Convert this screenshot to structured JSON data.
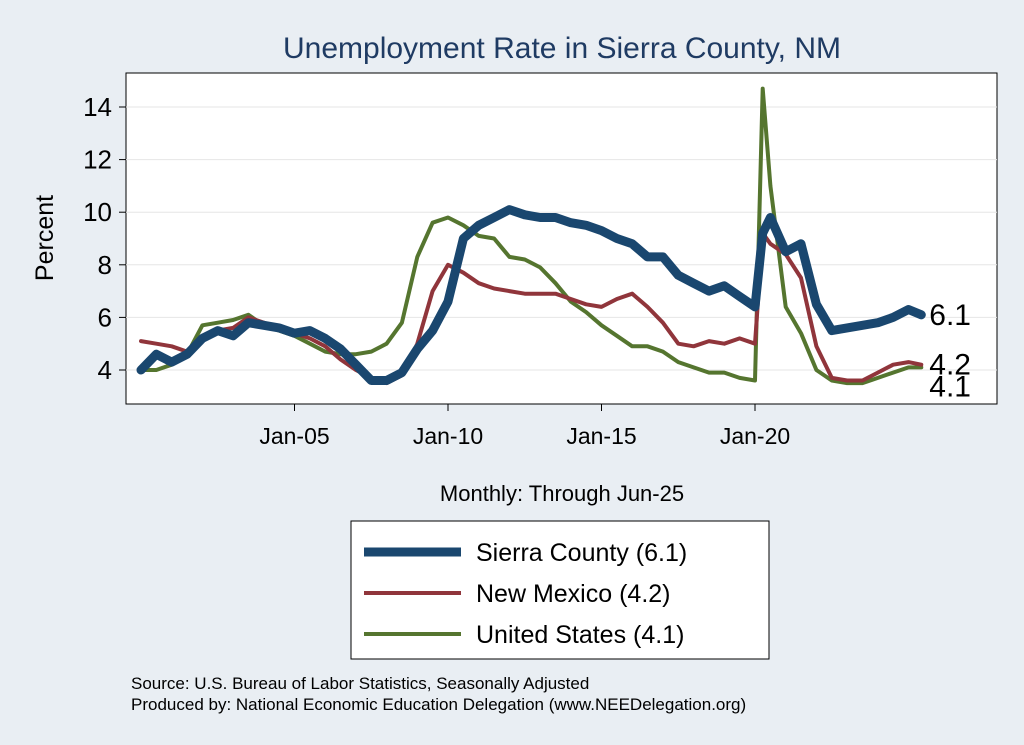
{
  "chart_data": {
    "type": "line",
    "title": "Unemployment Rate in Sierra  County, NM",
    "ylabel": "Percent",
    "xlabel": "Monthly: Through Jun-25",
    "x_range": [
      "Jan-00",
      "Jun-25"
    ],
    "ylim": [
      3,
      15
    ],
    "y_ticks": [
      4,
      6,
      8,
      10,
      12,
      14
    ],
    "x_ticks": [
      "Jan-05",
      "Jan-10",
      "Jan-15",
      "Jan-20"
    ],
    "grid": true,
    "legend_position": "bottom",
    "x": [
      "Jan-00",
      "Jul-00",
      "Jan-01",
      "Jul-01",
      "Jan-02",
      "Jul-02",
      "Jan-03",
      "Jul-03",
      "Jan-04",
      "Jul-04",
      "Jan-05",
      "Jul-05",
      "Jan-06",
      "Jul-06",
      "Jan-07",
      "Jul-07",
      "Jan-08",
      "Jul-08",
      "Jan-09",
      "Jul-09",
      "Jan-10",
      "Jul-10",
      "Jan-11",
      "Jul-11",
      "Jan-12",
      "Jul-12",
      "Jan-13",
      "Jul-13",
      "Jan-14",
      "Jul-14",
      "Jan-15",
      "Jul-15",
      "Jan-16",
      "Jul-16",
      "Jan-17",
      "Jul-17",
      "Jan-18",
      "Jul-18",
      "Jan-19",
      "Jul-19",
      "Jan-20",
      "Apr-20",
      "Jul-20",
      "Jan-21",
      "Jul-21",
      "Jan-22",
      "Jul-22",
      "Jan-23",
      "Jul-23",
      "Jan-24",
      "Jul-24",
      "Jan-25",
      "Jun-25"
    ],
    "series": [
      {
        "name": "Sierra  County (6.1)",
        "color": "#1a476f",
        "values": [
          4.0,
          4.6,
          4.3,
          4.6,
          5.2,
          5.5,
          5.3,
          5.8,
          5.7,
          5.6,
          5.4,
          5.5,
          5.2,
          4.8,
          4.2,
          3.6,
          3.6,
          3.9,
          4.8,
          5.5,
          6.6,
          9.0,
          9.5,
          9.8,
          10.1,
          9.9,
          9.8,
          9.8,
          9.6,
          9.5,
          9.3,
          9.0,
          8.8,
          8.3,
          8.3,
          7.6,
          7.3,
          7.0,
          7.2,
          6.8,
          6.4,
          9.2,
          9.8,
          8.5,
          8.8,
          6.5,
          5.5,
          5.6,
          5.7,
          5.8,
          6.0,
          6.3,
          6.1
        ]
      },
      {
        "name": "New Mexico (4.2)",
        "color": "#90353b",
        "values": [
          5.1,
          5.0,
          4.9,
          4.7,
          5.3,
          5.5,
          5.6,
          6.0,
          5.8,
          5.6,
          5.4,
          5.2,
          4.9,
          4.4,
          4.0,
          3.7,
          3.5,
          3.8,
          5.0,
          7.0,
          8.0,
          7.7,
          7.3,
          7.1,
          7.0,
          6.9,
          6.9,
          6.9,
          6.7,
          6.5,
          6.4,
          6.7,
          6.9,
          6.4,
          5.8,
          5.0,
          4.9,
          5.1,
          5.0,
          5.2,
          5.0,
          9.2,
          8.8,
          8.4,
          7.5,
          4.9,
          3.7,
          3.6,
          3.6,
          3.9,
          4.2,
          4.3,
          4.2
        ]
      },
      {
        "name": "United States (4.1)",
        "color": "#55752f",
        "values": [
          4.0,
          4.0,
          4.2,
          4.6,
          5.7,
          5.8,
          5.9,
          6.1,
          5.7,
          5.5,
          5.3,
          5.0,
          4.7,
          4.6,
          4.6,
          4.7,
          5.0,
          5.8,
          8.3,
          9.6,
          9.8,
          9.5,
          9.1,
          9.0,
          8.3,
          8.2,
          7.9,
          7.3,
          6.6,
          6.2,
          5.7,
          5.3,
          4.9,
          4.9,
          4.7,
          4.3,
          4.1,
          3.9,
          3.9,
          3.7,
          3.6,
          14.7,
          11.0,
          6.4,
          5.4,
          4.0,
          3.6,
          3.5,
          3.5,
          3.7,
          3.9,
          4.1,
          4.1
        ]
      }
    ],
    "end_labels": [
      "6.1",
      "4.2",
      "4.1"
    ],
    "notes": [
      "Source: U.S. Bureau of Labor Statistics, Seasonally Adjusted",
      "Produced by: National Economic Education Delegation (www.NEEDelegation.org)"
    ]
  }
}
